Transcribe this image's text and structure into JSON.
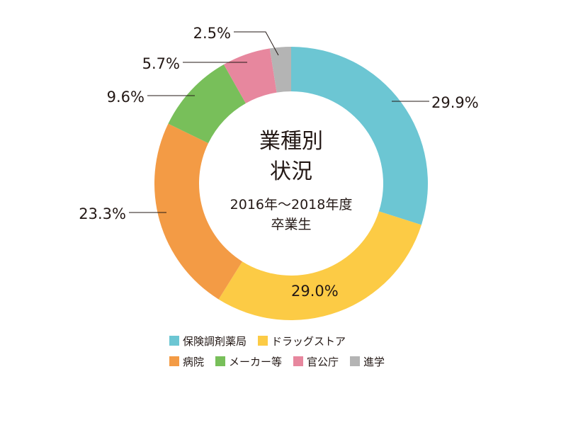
{
  "chart_data": {
    "type": "pie",
    "title": "業種別状況",
    "title_lines": [
      "業種別",
      "状況"
    ],
    "subtitle_lines": [
      "2016年〜2018年度",
      "卒業生"
    ],
    "categories": [
      "保険調剤薬局",
      "ドラッグストア",
      "病院",
      "メーカー等",
      "官公庁",
      "進学"
    ],
    "values": [
      29.9,
      29.0,
      23.3,
      9.6,
      5.7,
      2.5
    ],
    "value_labels": [
      "29.9%",
      "29.0%",
      "23.3%",
      "9.6%",
      "5.7%",
      "2.5%"
    ],
    "colors": [
      "#6cc6d3",
      "#fccb45",
      "#f39b45",
      "#78bf5a",
      "#e7879e",
      "#b4b4b4"
    ],
    "legend_placement": "bottom",
    "donut": true
  }
}
